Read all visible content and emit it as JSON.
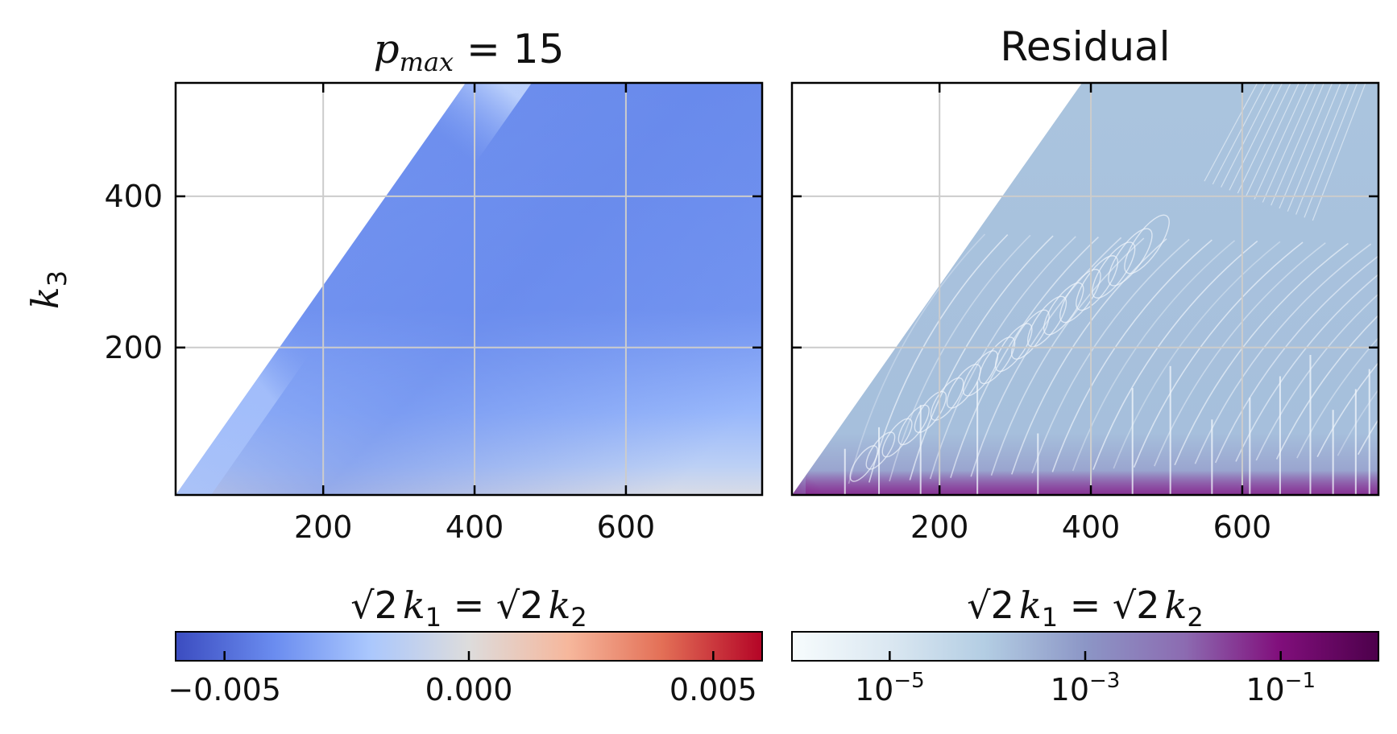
{
  "chart_data": [
    {
      "type": "heatmap",
      "title": "p_max = 15",
      "xlabel": "√2 k₁ = √2 k₂",
      "ylabel": "k₃",
      "xlim": [
        5,
        780
      ],
      "ylim": [
        5,
        550
      ],
      "xticks": [
        200,
        400,
        600
      ],
      "yticks": [
        200,
        400
      ],
      "grid": true,
      "domain": "k₃ ≤ √2 k₁ (triangle boundary from origin to (390, 550))",
      "colormap": "coolwarm",
      "colorbar": {
        "scale": "linear",
        "range": [
          -0.006,
          0.006
        ],
        "ticks": [
          "−0.005",
          "0.000",
          "0.005"
        ]
      },
      "approx_values": [
        {
          "region": "far from boundary, mid k₃",
          "value": -0.004
        },
        {
          "region": "near triangle edge",
          "value": -0.002
        },
        {
          "region": "bottom edge, small k₃",
          "value": -0.0005
        }
      ]
    },
    {
      "type": "heatmap",
      "title": "Residual",
      "xlabel": "√2 k₁ = √2 k₂",
      "xlim": [
        5,
        780
      ],
      "ylim": [
        5,
        550
      ],
      "xticks": [
        200,
        400,
        600
      ],
      "yticks": [
        200,
        400
      ],
      "grid": true,
      "domain": "k₃ ≤ √2 k₁",
      "colormap": "BuPu",
      "colorbar": {
        "scale": "log",
        "range": [
          1e-06,
          1
        ],
        "ticks": [
          "10⁻⁵",
          "10⁻³",
          "10⁻¹"
        ]
      },
      "approx_values": [
        {
          "region": "bulk",
          "value": 0.001
        },
        {
          "region": "bottom edge k₃ → 0",
          "value": 0.1
        }
      ]
    }
  ],
  "panels": {
    "left": {
      "title_base": "p",
      "title_sub": "max",
      "title_rest": " = 15",
      "x_ticks": [
        "200",
        "400",
        "600"
      ],
      "y_ticks": [
        "200",
        "400"
      ],
      "ylabel_base": "k",
      "ylabel_sub": "3",
      "xlabel": {
        "r1": "√2",
        "k1": "k",
        "s1": "1",
        "eq": " = ",
        "r2": "√2",
        "k2": "k",
        "s2": "2"
      },
      "cbar_ticks": [
        "−0.005",
        "0.000",
        "0.005"
      ]
    },
    "right": {
      "title": "Residual",
      "x_ticks": [
        "200",
        "400",
        "600"
      ],
      "xlabel": {
        "r1": "√2",
        "k1": "k",
        "s1": "1",
        "eq": " = ",
        "r2": "√2",
        "k2": "k",
        "s2": "2"
      },
      "cbar_ticks": [
        {
          "base": "10",
          "exp": "−5"
        },
        {
          "base": "10",
          "exp": "−3"
        },
        {
          "base": "10",
          "exp": "−1"
        }
      ]
    }
  },
  "colors": {
    "coolwarm": [
      "#3b4cc0",
      "#6b8df0",
      "#aac7fd",
      "#dddcdc",
      "#f6b79c",
      "#e36f56",
      "#b40426"
    ],
    "bupu": [
      "#f7fcfd",
      "#bfd3e6",
      "#9ebcda",
      "#8c96c6",
      "#8c6bb1",
      "#810f7c",
      "#4d004b"
    ],
    "grid": "#cccccc",
    "frame": "#000000"
  }
}
